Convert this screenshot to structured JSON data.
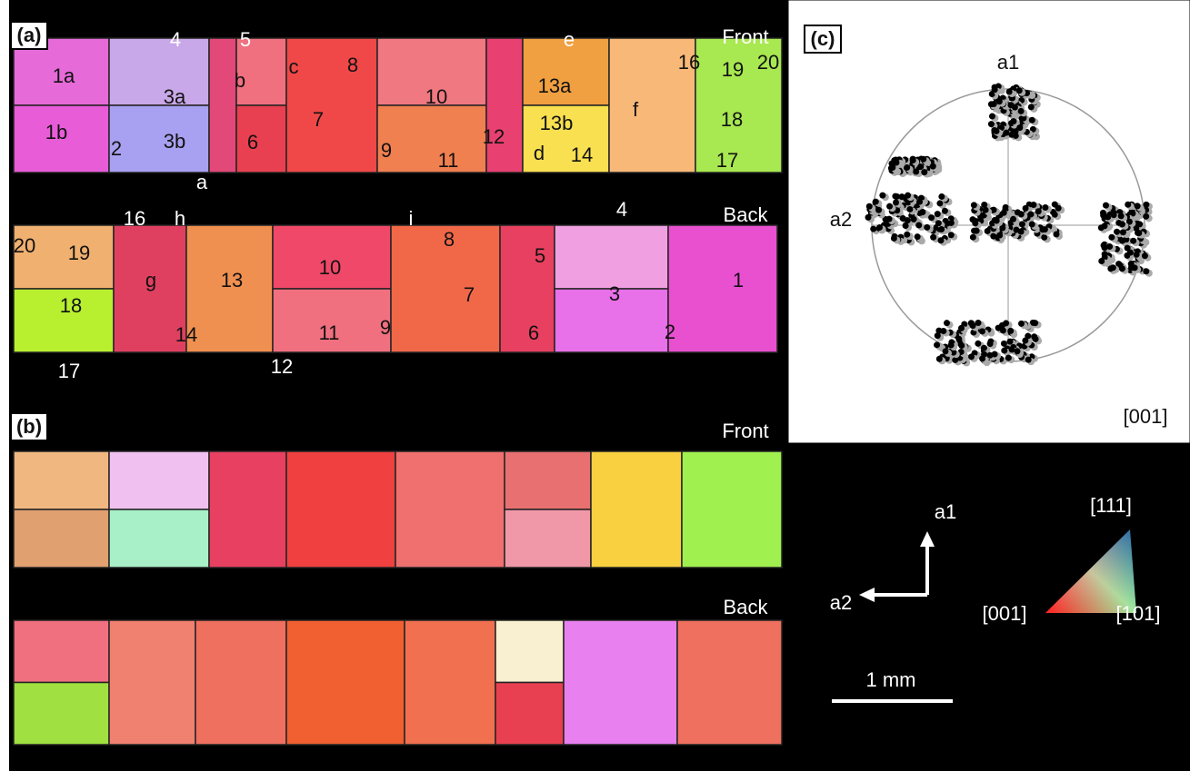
{
  "panel_a": {
    "label": "(a)",
    "front": "Front",
    "back": "Back",
    "front_grains": [
      "1a",
      "1b",
      "2",
      "3a",
      "3b",
      "4",
      "5",
      "a",
      "b",
      "c",
      "6",
      "7",
      "8",
      "9",
      "10",
      "11",
      "12",
      "13a",
      "13b",
      "d",
      "e",
      "14",
      "f",
      "16",
      "19",
      "20",
      "18",
      "17"
    ],
    "back_grains": [
      "16",
      "h",
      "i",
      "4",
      "20",
      "19",
      "g",
      "13",
      "10",
      "8",
      "5",
      "7",
      "3",
      "1",
      "18",
      "14",
      "11",
      "9",
      "6",
      "2",
      "17",
      "12"
    ]
  },
  "panel_b": {
    "label": "(b)",
    "front": "Front",
    "back": "Back"
  },
  "panel_c": {
    "label": "(c)",
    "axis_top": "a1",
    "axis_left": "a2",
    "direction": "[001]"
  },
  "legend": {
    "a1": "a1",
    "a2": "a2",
    "top": "[111]",
    "left": "[001]",
    "right": "[101]",
    "scale": "1 mm"
  }
}
